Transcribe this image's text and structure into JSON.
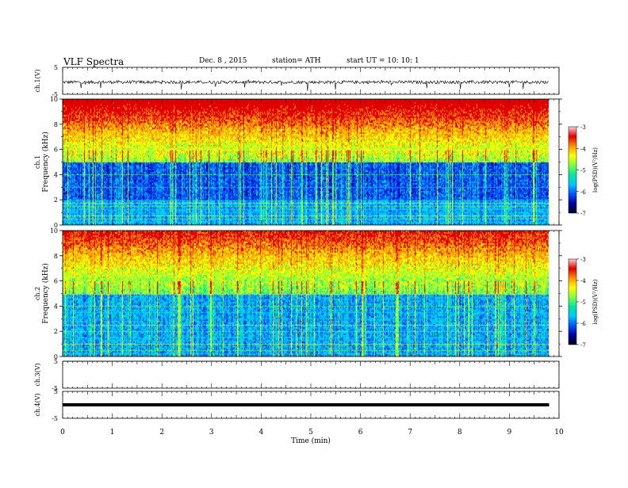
{
  "header": {
    "title": "VLF  Spectra",
    "date": "Dec. 8  , 2015",
    "station": "station= ATH",
    "start": "start  UT  =    10: 10: 1"
  },
  "colors": {
    "colormap": [
      "#000010",
      "#0000a0",
      "#0050ff",
      "#00c8ff",
      "#00e6a0",
      "#80ff40",
      "#ffff00",
      "#ff9000",
      "#e00000",
      "#ffd0d0"
    ]
  },
  "chart_data": [
    {
      "type": "line",
      "panel": "ch1-waveform",
      "ylabel": "ch.1(V)",
      "yticks": [
        "5",
        "-5"
      ],
      "ylim": [
        -5,
        5
      ],
      "xlim": [
        0,
        10
      ],
      "data_extent_min": 9.8,
      "baseline_v": -0.5,
      "spike_v_range": [
        -3.8,
        0.5
      ]
    },
    {
      "type": "heatmap",
      "panel": "ch1-spectrogram",
      "ylabel": "Frequency  (kHz)",
      "channel_label": "ch.1",
      "yticks": [
        "0",
        "2",
        "4",
        "6",
        "8",
        "10"
      ],
      "ylim": [
        0,
        10
      ],
      "xlim": [
        0,
        10
      ],
      "data_extent_min": 9.8,
      "colorbar": {
        "label": "log(PSD)(V²/Hz)",
        "ticks": [
          "-3",
          "-4",
          "-5",
          "-6",
          "-7"
        ],
        "range": [
          -7,
          -3
        ]
      },
      "bands_khz": [
        0.25,
        0.5,
        0.75,
        1.0,
        1.25,
        1.5,
        1.75,
        2.0,
        3.0,
        4.0,
        6.0
      ]
    },
    {
      "type": "heatmap",
      "panel": "ch2-spectrogram",
      "ylabel": "Frequency  (kHz)",
      "channel_label": "ch.2",
      "yticks": [
        "0",
        "2",
        "4",
        "6",
        "8",
        "10"
      ],
      "ylim": [
        0,
        10
      ],
      "xlim": [
        0,
        10
      ],
      "data_extent_min": 9.8,
      "colorbar": {
        "label": "log(PSD)(V²/Hz)",
        "ticks": [
          "-3",
          "-4",
          "-5",
          "-6",
          "-7"
        ],
        "range": [
          -7,
          -3
        ]
      },
      "bands_khz": [
        0.25,
        0.5,
        1.0,
        1.25,
        1.5,
        2.0,
        2.5,
        3.0,
        3.5,
        4.0,
        5.0
      ]
    },
    {
      "type": "line",
      "panel": "ch3-waveform",
      "ylabel": "ch.3(V)",
      "yticks": [
        "5",
        "-5"
      ],
      "ylim": [
        -5,
        5
      ],
      "xlim": [
        0,
        10
      ],
      "data_extent_min": 9.8,
      "baseline_v": 5
    },
    {
      "type": "line",
      "panel": "ch4-waveform",
      "ylabel": "ch.4(V)",
      "yticks": [
        "5",
        "-5"
      ],
      "ylim": [
        -5,
        5
      ],
      "xlim": [
        0,
        10
      ],
      "data_extent_min": 9.8,
      "baseline_v": 0
    }
  ],
  "xaxis": {
    "label": "Time  (min)",
    "ticks": [
      "0",
      "1",
      "2",
      "3",
      "4",
      "5",
      "6",
      "7",
      "8",
      "9",
      "10"
    ]
  }
}
